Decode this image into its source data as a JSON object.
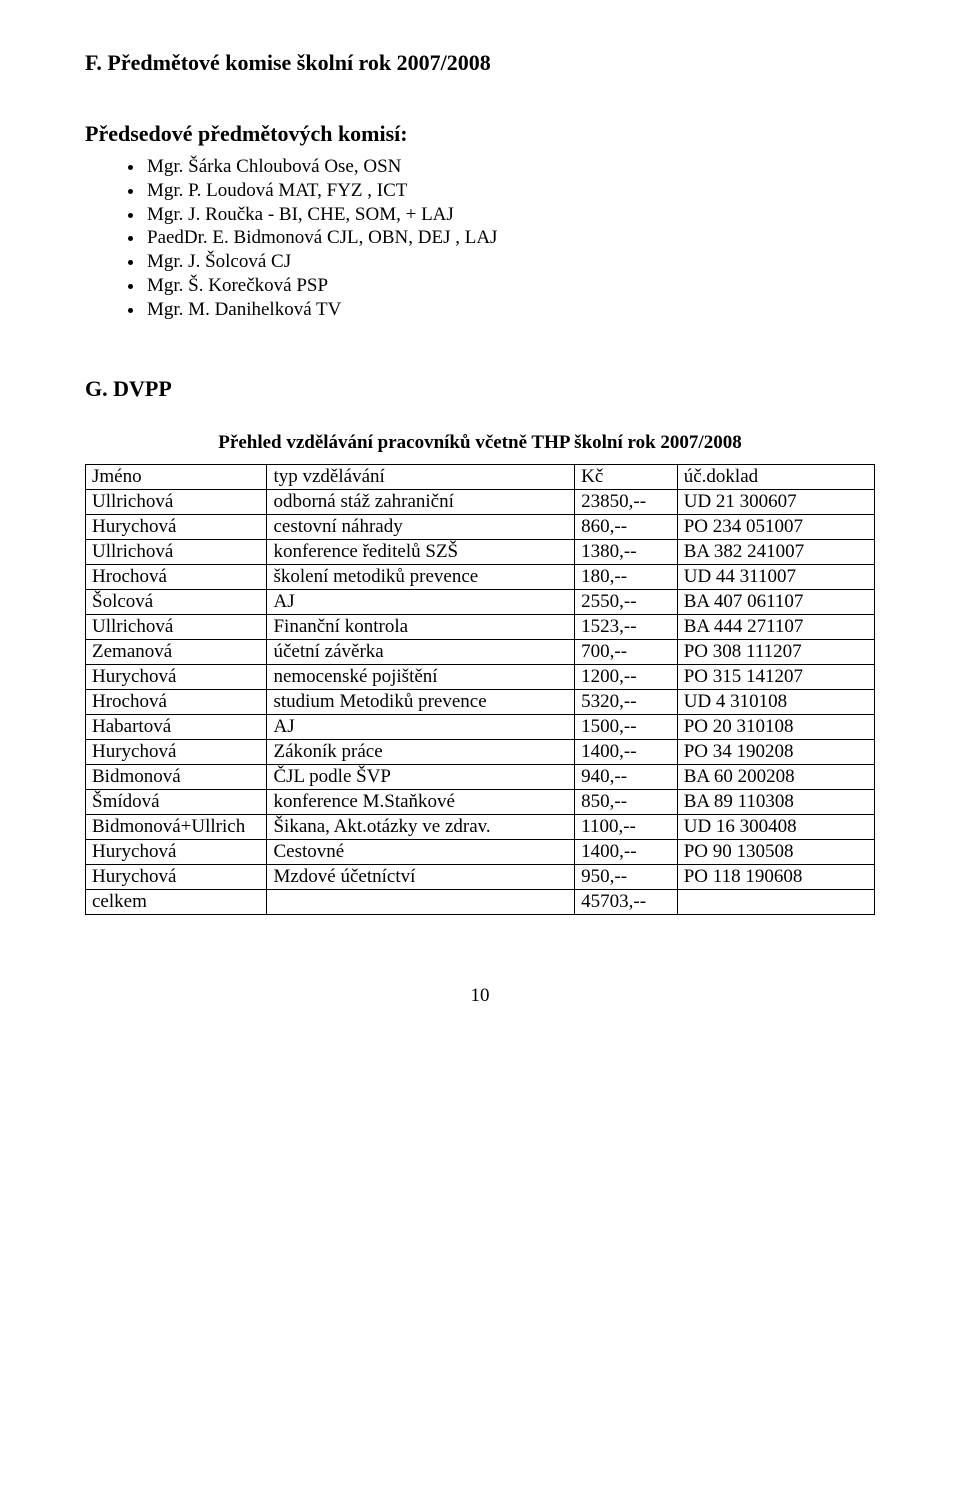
{
  "sectionF": {
    "heading": "F. Předmětové komise školní rok 2007/2008",
    "subheading": "Předsedové předmětových komisí:",
    "items": [
      "Mgr. Šárka Chloubová Ose, OSN",
      "Mgr. P. Loudová MAT, FYZ , ICT",
      "Mgr. J. Roučka - BI, CHE, SOM,  + LAJ",
      "PaedDr. E. Bidmonová CJL, OBN, DEJ , LAJ",
      "Mgr. J. Šolcová CJ",
      "Mgr. Š. Korečková PSP",
      "Mgr. M. Danihelková TV"
    ]
  },
  "sectionG": {
    "heading": "G. DVPP",
    "tableTitle": "Přehled vzdělávání  pracovníků včetně THP školní rok 2007/2008",
    "header": [
      "Jméno",
      "typ vzdělávání",
      "Kč",
      "úč.doklad"
    ],
    "rows": [
      [
        "Ullrichová",
        "odborná stáž zahraniční",
        "23850,--",
        "UD 21 300607"
      ],
      [
        "Hurychová",
        "cestovní náhrady",
        "860,--",
        "PO 234 051007"
      ],
      [
        "Ullrichová",
        "konference ředitelů SZŠ",
        "1380,--",
        "BA 382 241007"
      ],
      [
        "Hrochová",
        "školení metodiků prevence",
        "180,--",
        "UD 44 311007"
      ],
      [
        "Šolcová",
        "AJ",
        "2550,--",
        "BA 407 061107"
      ],
      [
        "Ullrichová",
        "Finanční kontrola",
        "1523,--",
        "BA 444 271107"
      ],
      [
        "Zemanová",
        "účetní závěrka",
        "700,--",
        "PO 308 111207"
      ],
      [
        "Hurychová",
        "nemocenské pojištění",
        "1200,--",
        "PO 315 141207"
      ],
      [
        "Hrochová",
        "studium Metodiků prevence",
        "5320,--",
        "UD 4 310108"
      ],
      [
        "Habartová",
        "AJ",
        "1500,--",
        "PO 20 310108"
      ],
      [
        "Hurychová",
        "Zákoník práce",
        "1400,--",
        "PO 34 190208"
      ],
      [
        "Bidmonová",
        "ČJL podle ŠVP",
        "940,--",
        "BA 60 200208"
      ],
      [
        "Šmídová",
        "konference M.Staňkové",
        "850,--",
        "BA 89 110308"
      ],
      [
        "Bidmonová+Ullrich",
        "Šikana, Akt.otázky ve zdrav.",
        "1100,--",
        "UD 16 300408"
      ],
      [
        "Hurychová",
        "Cestovné",
        "1400,--",
        "PO 90 130508"
      ],
      [
        "Hurychová",
        "Mzdové účetníctví",
        "950,--",
        "PO 118 190608"
      ],
      [
        "celkem",
        "",
        "45703,--",
        ""
      ]
    ]
  },
  "pageNumber": "10"
}
